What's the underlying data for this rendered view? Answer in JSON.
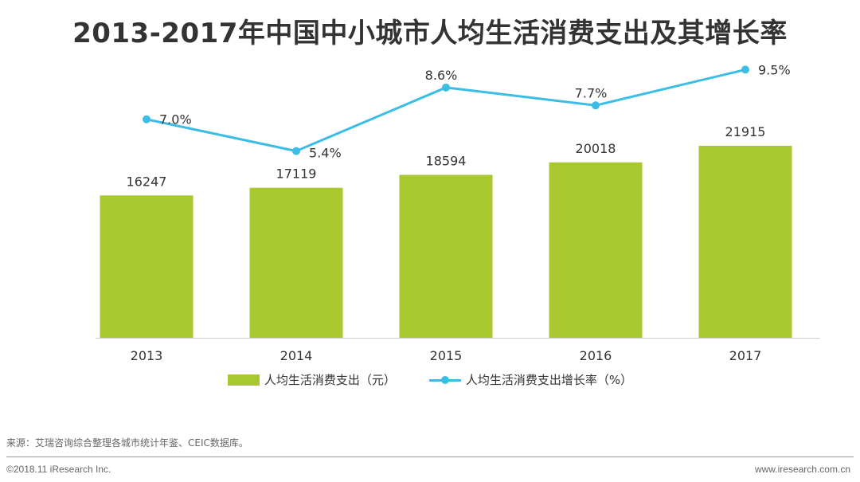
{
  "title": "2013-2017年中国中小城市人均生活消费支出及其增长率",
  "chart_data": {
    "type": "bar",
    "categories": [
      "2013",
      "2014",
      "2015",
      "2016",
      "2017"
    ],
    "series": [
      {
        "name": "人均生活消费支出（元）",
        "type": "bar",
        "values": [
          16247,
          17119,
          18594,
          20018,
          21915
        ],
        "labels": [
          "16247",
          "17119",
          "18594",
          "20018",
          "21915"
        ],
        "color": "#a9c72e",
        "axis": "left"
      },
      {
        "name": "人均生活消费支出增长率（%）",
        "type": "line",
        "values": [
          7.0,
          5.4,
          8.6,
          7.7,
          9.5
        ],
        "labels": [
          "7.0%",
          "5.4%",
          "8.6%",
          "7.7%",
          "9.5%"
        ],
        "color": "#3bbde6",
        "axis": "right"
      }
    ],
    "ylim_left": [
      0,
      34000
    ],
    "ylim_right": [
      -4,
      11
    ],
    "legend": "bottom",
    "grid": false
  },
  "legend": {
    "bar_label": "人均生活消费支出（元）",
    "line_label": "人均生活消费支出增长率（%）"
  },
  "source": "来源：艾瑞咨询综合整理各城市统计年鉴、CEIC数据库。",
  "footer": {
    "copyright": "©2018.11 iResearch Inc.",
    "website": "www.iresearch.com.cn"
  }
}
